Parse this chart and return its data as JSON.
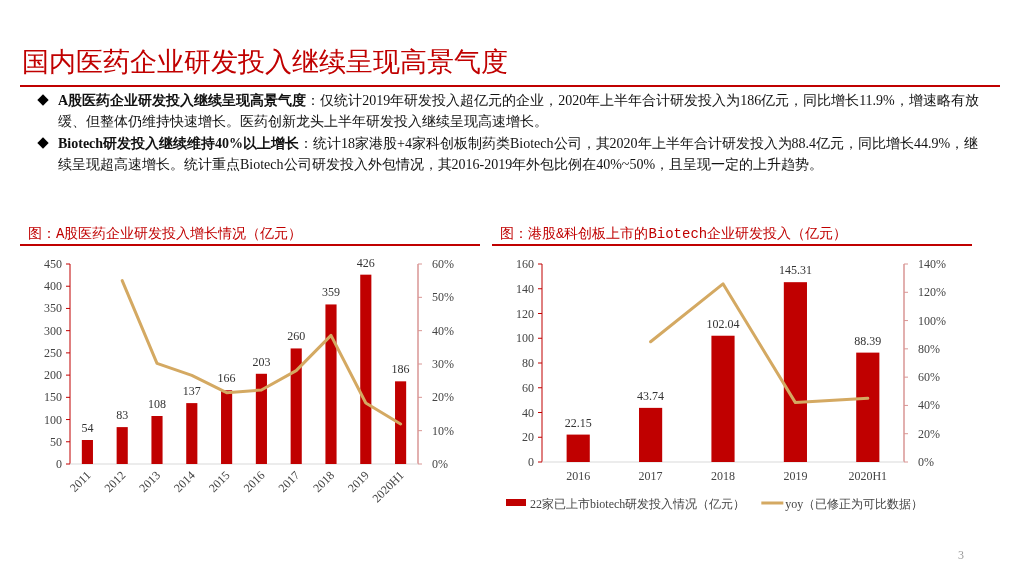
{
  "chart_data": [
    {
      "type": "other",
      "title": "国内医药企业研发投入继续呈现高景气度",
      "annotations": [
        "A股医药企业研发投入继续呈现高景气度：仅统计2019年研发投入超亿元的企业，2020年上半年合计研发投入为186亿元，同比增长11.9%，增速略有放缓、但整体仍维持快速增长。医药创新龙头上半年研发投入继续呈现高速增长。",
        "Biotech研发投入继续维持40%以上增长：统计18家港股+4家科创板制药类Biotech公司，其2020年上半年合计研发投入为88.4亿元，同比增长44.9%，继续呈现超高速增长。统计重点Biotech公司研发投入外包情况，其2016-2019年外包比例在40%~50%，且呈现一定的上升趋势。",
        "3"
      ]
    },
    {
      "type": "bar",
      "title": "图：A股医药企业研发投入增长情况（亿元）",
      "categories": [
        "2011",
        "2012",
        "2013",
        "2014",
        "2015",
        "2016",
        "2017",
        "2018",
        "2019",
        "2020H1"
      ],
      "series": [
        {
          "type": "bar",
          "color": "#c00000",
          "values": [
            54,
            83,
            108,
            137,
            166,
            203,
            260,
            359,
            426,
            186
          ],
          "value_labels": [
            "54",
            "83",
            "108",
            "137",
            "166",
            "203",
            "260",
            "359",
            "426",
            "186"
          ]
        },
        {
          "type": "line",
          "axis": "y2",
          "color": "#d4a962",
          "values": [
            null,
            55,
            30.2,
            26.6,
            21.4,
            22.2,
            28,
            38.6,
            18.3,
            12
          ]
        }
      ],
      "ylim": [
        0,
        450
      ],
      "yticks": [
        0,
        50,
        100,
        150,
        200,
        250,
        300,
        350,
        400,
        450
      ],
      "y2lim": [
        0,
        60
      ],
      "y2ticks": [
        {
          "value": 0,
          "label": "0%"
        },
        {
          "value": 10,
          "label": "10%"
        },
        {
          "value": 20,
          "label": "20%"
        },
        {
          "value": 30,
          "label": "30%"
        },
        {
          "value": 40,
          "label": "40%"
        },
        {
          "value": 50,
          "label": "50%"
        },
        {
          "value": 60,
          "label": "60%"
        }
      ],
      "grid": false,
      "legend": false
    },
    {
      "type": "bar",
      "title": "图：港股&科创板上市的Biotech企业研发投入（亿元）",
      "categories": [
        "2016",
        "2017",
        "2018",
        "2019",
        "2020H1"
      ],
      "series": [
        {
          "type": "bar",
          "name": "22家已上市biotech研发投入情况（亿元）",
          "color": "#c00000",
          "values": [
            22.15,
            43.74,
            102.04,
            145.31,
            88.39
          ],
          "value_labels": [
            "22.15",
            "43.74",
            "102.04",
            "145.31",
            "88.39"
          ]
        },
        {
          "type": "line",
          "name": "yoy（已修正为可比数据）",
          "axis": "y2",
          "color": "#d4a962",
          "values": [
            null,
            85,
            126,
            42,
            45
          ]
        }
      ],
      "ylim": [
        0,
        160
      ],
      "yticks": [
        0,
        20,
        40,
        60,
        80,
        100,
        120,
        140,
        160
      ],
      "y2lim": [
        0,
        140
      ],
      "y2ticks": [
        {
          "value": 0,
          "label": "0%"
        },
        {
          "value": 20,
          "label": "20%"
        },
        {
          "value": 40,
          "label": "40%"
        },
        {
          "value": 60,
          "label": "60%"
        },
        {
          "value": 80,
          "label": "80%"
        },
        {
          "value": 100,
          "label": "100%"
        },
        {
          "value": 120,
          "label": "120%"
        },
        {
          "value": 140,
          "label": "140%"
        }
      ],
      "grid": false,
      "legend": "bottom"
    }
  ]
}
